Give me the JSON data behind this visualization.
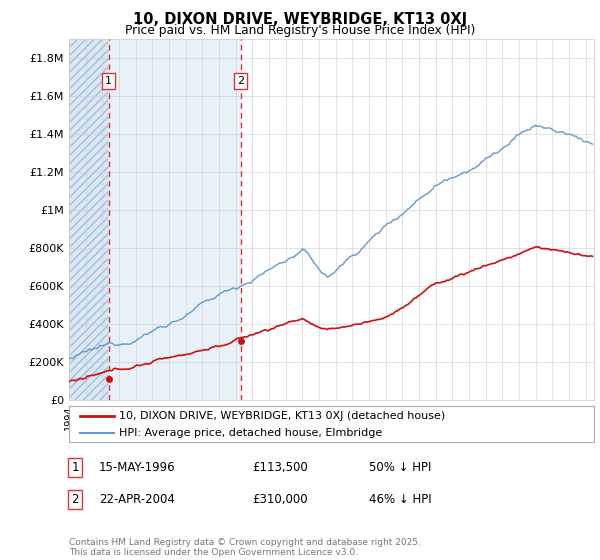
{
  "title": "10, DIXON DRIVE, WEYBRIDGE, KT13 0XJ",
  "subtitle": "Price paid vs. HM Land Registry's House Price Index (HPI)",
  "ylabel_values": [
    "£0",
    "£200K",
    "£400K",
    "£600K",
    "£800K",
    "£1M",
    "£1.2M",
    "£1.4M",
    "£1.6M",
    "£1.8M"
  ],
  "y_values": [
    0,
    200000,
    400000,
    600000,
    800000,
    1000000,
    1200000,
    1400000,
    1600000,
    1800000
  ],
  "x_start_year": 1994,
  "x_end_year": 2025,
  "hpi_color": "#6699CC",
  "price_color": "#CC1111",
  "sale1_year": 1996.37,
  "sale1_price": 113500,
  "sale2_year": 2004.31,
  "sale2_price": 310000,
  "vline_color": "#DD3333",
  "legend_label_price": "10, DIXON DRIVE, WEYBRIDGE, KT13 0XJ (detached house)",
  "legend_label_hpi": "HPI: Average price, detached house, Elmbridge",
  "table_rows": [
    {
      "num": "1",
      "date": "15-MAY-1996",
      "price": "£113,500",
      "pct": "50% ↓ HPI"
    },
    {
      "num": "2",
      "date": "22-APR-2004",
      "price": "£310,000",
      "pct": "46% ↓ HPI"
    }
  ],
  "footer": "Contains HM Land Registry data © Crown copyright and database right 2025.\nThis data is licensed under the Open Government Licence v3.0.",
  "background_color": "#FFFFFF",
  "plot_bg_color": "#FFFFFF"
}
